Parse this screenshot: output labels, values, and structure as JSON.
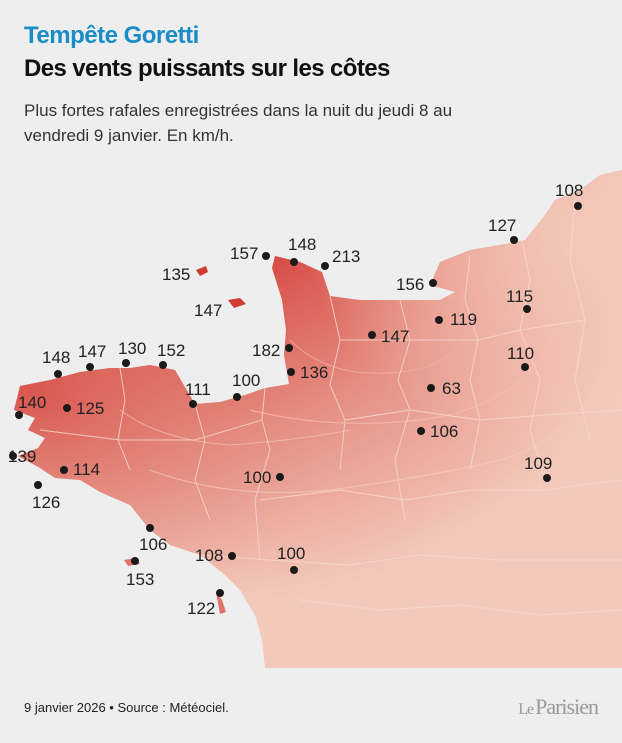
{
  "header": {
    "kicker": "Tempête Goretti",
    "title": "Des vents puissants sur les côtes",
    "subtitle": "Plus fortes rafales enregistrées dans la nuit du jeudi 8 au vendredi 9 janvier. En km/h."
  },
  "footer": {
    "source": "9 janvier 2026 • Source : Météociel.",
    "logo_le": "Le",
    "logo_name": "Parisien"
  },
  "colors": {
    "background": "#eeeeee",
    "kicker": "#1a8cc7",
    "low": "#f3c9bc",
    "mid": "#e3867a",
    "high": "#c41e1e"
  },
  "stations": [
    {
      "value": "108"
    },
    {
      "value": "127"
    },
    {
      "value": "157"
    },
    {
      "value": "148"
    },
    {
      "value": "213"
    },
    {
      "value": "135"
    },
    {
      "value": "147"
    },
    {
      "value": "156"
    },
    {
      "value": "115"
    },
    {
      "value": "119"
    },
    {
      "value": "147"
    },
    {
      "value": "182"
    },
    {
      "value": "136"
    },
    {
      "value": "110"
    },
    {
      "value": "148"
    },
    {
      "value": "147"
    },
    {
      "value": "130"
    },
    {
      "value": "152"
    },
    {
      "value": "111"
    },
    {
      "value": "100"
    },
    {
      "value": "63"
    },
    {
      "value": "140"
    },
    {
      "value": "125"
    },
    {
      "value": "106"
    },
    {
      "value": "139"
    },
    {
      "value": "114"
    },
    {
      "value": "109"
    },
    {
      "value": "126"
    },
    {
      "value": "100"
    },
    {
      "value": "106"
    },
    {
      "value": "108"
    },
    {
      "value": "100"
    },
    {
      "value": "153"
    },
    {
      "value": "122"
    }
  ]
}
